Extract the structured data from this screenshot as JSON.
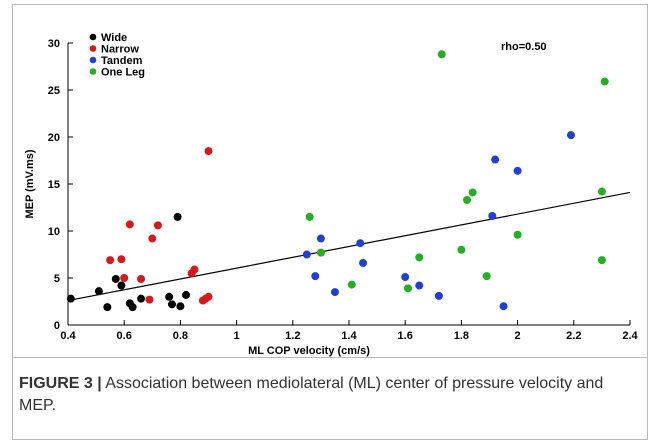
{
  "chart_data": {
    "type": "scatter",
    "title": "",
    "xlabel": "ML COP velocity (cm/s)",
    "ylabel": "MEP (mV.ms)",
    "xlim": [
      0.4,
      2.4
    ],
    "ylim": [
      0,
      30
    ],
    "xticks": [
      "0.4",
      "0.6",
      "0.8",
      "1",
      "1.2",
      "1.4",
      "1.6",
      "1.8",
      "2",
      "2.2",
      "2.4"
    ],
    "yticks": [
      "0",
      "5",
      "10",
      "15",
      "20",
      "25",
      "30"
    ],
    "grid": false,
    "legend_position": "top-left",
    "annotation": "rho=0.50",
    "series": [
      {
        "name": "Wide",
        "color": "#000000",
        "points": [
          [
            0.41,
            2.8
          ],
          [
            0.51,
            3.6
          ],
          [
            0.54,
            1.9
          ],
          [
            0.57,
            4.9
          ],
          [
            0.59,
            4.2
          ],
          [
            0.62,
            2.3
          ],
          [
            0.63,
            1.9
          ],
          [
            0.66,
            2.8
          ],
          [
            0.76,
            3.0
          ],
          [
            0.77,
            2.2
          ],
          [
            0.79,
            11.5
          ],
          [
            0.8,
            2.0
          ],
          [
            0.82,
            3.2
          ]
        ]
      },
      {
        "name": "Narrow",
        "color": "#d7191c",
        "points": [
          [
            0.55,
            6.9
          ],
          [
            0.59,
            7.0
          ],
          [
            0.6,
            5.0
          ],
          [
            0.62,
            10.7
          ],
          [
            0.66,
            4.9
          ],
          [
            0.69,
            2.7
          ],
          [
            0.7,
            9.2
          ],
          [
            0.72,
            10.6
          ],
          [
            0.84,
            5.5
          ],
          [
            0.85,
            5.9
          ],
          [
            0.88,
            2.6
          ],
          [
            0.89,
            2.8
          ],
          [
            0.9,
            3.0
          ],
          [
            0.9,
            18.5
          ]
        ]
      },
      {
        "name": "Tandem",
        "color": "#1f3fd6",
        "points": [
          [
            1.25,
            7.5
          ],
          [
            1.28,
            5.2
          ],
          [
            1.3,
            9.2
          ],
          [
            1.35,
            3.5
          ],
          [
            1.44,
            8.7
          ],
          [
            1.45,
            6.6
          ],
          [
            1.6,
            5.1
          ],
          [
            1.65,
            4.2
          ],
          [
            1.72,
            3.1
          ],
          [
            1.91,
            11.6
          ],
          [
            1.92,
            17.6
          ],
          [
            1.95,
            2.0
          ],
          [
            2.0,
            16.4
          ],
          [
            2.19,
            20.2
          ]
        ]
      },
      {
        "name": "One Leg",
        "color": "#22b022",
        "points": [
          [
            1.26,
            11.5
          ],
          [
            1.3,
            7.7
          ],
          [
            1.41,
            4.3
          ],
          [
            1.61,
            3.9
          ],
          [
            1.65,
            7.2
          ],
          [
            1.73,
            28.8
          ],
          [
            1.8,
            8.0
          ],
          [
            1.82,
            13.3
          ],
          [
            1.84,
            14.1
          ],
          [
            1.89,
            5.2
          ],
          [
            2.0,
            9.6
          ],
          [
            2.3,
            6.9
          ],
          [
            2.3,
            14.2
          ],
          [
            2.31,
            25.9
          ]
        ]
      }
    ],
    "fit_line": {
      "x": [
        0.4,
        2.4
      ],
      "y": [
        2.6,
        14.1
      ]
    }
  },
  "caption": {
    "label": "FIGURE 3 |",
    "text": " Association between mediolateral (ML) center of pressure velocity and MEP."
  }
}
